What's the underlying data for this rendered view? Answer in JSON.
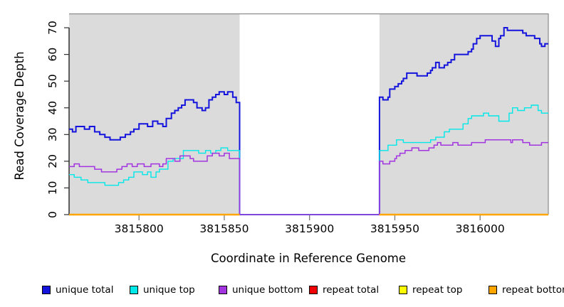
{
  "chart_data": {
    "type": "line",
    "subtype": "step",
    "title": "",
    "xlabel": "Coordinate in Reference Genome",
    "ylabel": "Read Coverage Depth",
    "xlim": [
      3815759,
      3816040
    ],
    "ylim": [
      0,
      75.2
    ],
    "x_ticks": [
      3815800,
      3815850,
      3815900,
      3815950,
      3816000
    ],
    "y_ticks": [
      0,
      10,
      20,
      30,
      40,
      50,
      60,
      70
    ],
    "grid": false,
    "legend_position": "bottom",
    "shade_color": "#DBDBDB",
    "shaded_regions": [
      [
        3815759,
        3815859
      ],
      [
        3815941,
        3816040
      ]
    ],
    "gap_region": [
      3815859,
      3815941
    ],
    "series": [
      {
        "label": "unique total",
        "color": "#1414DC",
        "segments": [
          [
            [
              3815759,
              32
            ],
            [
              3815761,
              31
            ],
            [
              3815763,
              33
            ],
            [
              3815768,
              32
            ],
            [
              3815771,
              33
            ],
            [
              3815774,
              31
            ],
            [
              3815777,
              30
            ],
            [
              3815780,
              29
            ],
            [
              3815783,
              28
            ],
            [
              3815789,
              29
            ],
            [
              3815792,
              30
            ],
            [
              3815795,
              31
            ],
            [
              3815797,
              32
            ],
            [
              3815800,
              34
            ],
            [
              3815805,
              33
            ],
            [
              3815808,
              35
            ],
            [
              3815811,
              34
            ],
            [
              3815814,
              33
            ],
            [
              3815816,
              36
            ],
            [
              3815819,
              38
            ],
            [
              3815821,
              39
            ],
            [
              3815823,
              40
            ],
            [
              3815825,
              41
            ],
            [
              3815827,
              43
            ],
            [
              3815832,
              42
            ],
            [
              3815834,
              40
            ],
            [
              3815837,
              39
            ],
            [
              3815839,
              40
            ],
            [
              3815841,
              43
            ],
            [
              3815843,
              44
            ],
            [
              3815845,
              45
            ],
            [
              3815847,
              46
            ],
            [
              3815850,
              45
            ],
            [
              3815852,
              46
            ],
            [
              3815855,
              44
            ],
            [
              3815857,
              42
            ],
            [
              3815859,
              0
            ],
            [
              3815941,
              44
            ],
            [
              3815943,
              43
            ],
            [
              3815946,
              44
            ],
            [
              3815947,
              47
            ],
            [
              3815950,
              48
            ],
            [
              3815952,
              49
            ],
            [
              3815954,
              50
            ],
            [
              3815955,
              51
            ],
            [
              3815957,
              53
            ],
            [
              3815963,
              52
            ],
            [
              3815969,
              53
            ],
            [
              3815971,
              54
            ],
            [
              3815972,
              55
            ],
            [
              3815974,
              57
            ],
            [
              3815976,
              55
            ],
            [
              3815979,
              56
            ],
            [
              3815981,
              57
            ],
            [
              3815983,
              58
            ],
            [
              3815985,
              60
            ],
            [
              3815993,
              61
            ],
            [
              3815995,
              62
            ],
            [
              3815996,
              64
            ],
            [
              3815998,
              66
            ],
            [
              3816000,
              67
            ],
            [
              3816007,
              65
            ],
            [
              3816009,
              63
            ],
            [
              3816011,
              66
            ],
            [
              3816012,
              67
            ],
            [
              3816014,
              70
            ],
            [
              3816016,
              69
            ],
            [
              3816025,
              68
            ],
            [
              3816027,
              67
            ],
            [
              3816032,
              66
            ],
            [
              3816035,
              64
            ],
            [
              3816036,
              63
            ],
            [
              3816038,
              64
            ],
            [
              3816040,
              64
            ]
          ]
        ]
      },
      {
        "label": "unique top",
        "color": "#00E8E8",
        "segments": [
          [
            [
              3815759,
              15
            ],
            [
              3815762,
              14
            ],
            [
              3815766,
              13
            ],
            [
              3815770,
              12
            ],
            [
              3815780,
              11
            ],
            [
              3815788,
              12
            ],
            [
              3815791,
              13
            ],
            [
              3815794,
              14
            ],
            [
              3815797,
              16
            ],
            [
              3815802,
              15
            ],
            [
              3815805,
              16
            ],
            [
              3815807,
              14
            ],
            [
              3815810,
              16
            ],
            [
              3815812,
              17
            ],
            [
              3815817,
              20
            ],
            [
              3815820,
              21
            ],
            [
              3815826,
              24
            ],
            [
              3815835,
              23
            ],
            [
              3815839,
              24
            ],
            [
              3815842,
              23
            ],
            [
              3815845,
              24
            ],
            [
              3815848,
              25
            ],
            [
              3815852,
              24
            ],
            [
              3815859,
              0
            ],
            [
              3815941,
              24
            ],
            [
              3815946,
              26
            ],
            [
              3815951,
              28
            ],
            [
              3815955,
              27
            ],
            [
              3815971,
              28
            ],
            [
              3815974,
              29
            ],
            [
              3815979,
              31
            ],
            [
              3815982,
              32
            ],
            [
              3815990,
              34
            ],
            [
              3815993,
              36
            ],
            [
              3815995,
              37
            ],
            [
              3816002,
              38
            ],
            [
              3816005,
              37
            ],
            [
              3816011,
              35
            ],
            [
              3816017,
              38
            ],
            [
              3816019,
              40
            ],
            [
              3816022,
              39
            ],
            [
              3816026,
              40
            ],
            [
              3816030,
              41
            ],
            [
              3816034,
              39
            ],
            [
              3816036,
              38
            ],
            [
              3816040,
              38
            ]
          ]
        ]
      },
      {
        "label": "unique bottom",
        "color": "#A335E0",
        "segments": [
          [
            [
              3815759,
              18
            ],
            [
              3815762,
              19
            ],
            [
              3815765,
              18
            ],
            [
              3815774,
              17
            ],
            [
              3815778,
              16
            ],
            [
              3815787,
              17
            ],
            [
              3815790,
              18
            ],
            [
              3815793,
              19
            ],
            [
              3815796,
              18
            ],
            [
              3815799,
              19
            ],
            [
              3815803,
              18
            ],
            [
              3815807,
              19
            ],
            [
              3815812,
              18
            ],
            [
              3815814,
              19
            ],
            [
              3815816,
              21
            ],
            [
              3815821,
              20
            ],
            [
              3815824,
              22
            ],
            [
              3815830,
              21
            ],
            [
              3815832,
              20
            ],
            [
              3815840,
              22
            ],
            [
              3815843,
              23
            ],
            [
              3815847,
              22
            ],
            [
              3815850,
              23
            ],
            [
              3815853,
              21
            ],
            [
              3815859,
              0
            ],
            [
              3815941,
              20
            ],
            [
              3815943,
              19
            ],
            [
              3815947,
              20
            ],
            [
              3815950,
              21
            ],
            [
              3815951,
              22
            ],
            [
              3815953,
              23
            ],
            [
              3815956,
              24
            ],
            [
              3815960,
              25
            ],
            [
              3815964,
              24
            ],
            [
              3815970,
              25
            ],
            [
              3815973,
              26
            ],
            [
              3815975,
              27
            ],
            [
              3815977,
              26
            ],
            [
              3815984,
              27
            ],
            [
              3815987,
              26
            ],
            [
              3815995,
              27
            ],
            [
              3816003,
              28
            ],
            [
              3816018,
              27
            ],
            [
              3816019,
              28
            ],
            [
              3816025,
              27
            ],
            [
              3816029,
              26
            ],
            [
              3816036,
              27
            ],
            [
              3816040,
              27
            ]
          ]
        ]
      },
      {
        "label": "repeat total",
        "color": "#EE0000",
        "segments": [
          [
            [
              3815759,
              0
            ],
            [
              3815859,
              0
            ]
          ],
          [
            [
              3815941,
              0
            ],
            [
              3816040,
              0
            ]
          ]
        ]
      },
      {
        "label": "repeat top",
        "color": "#FFFF00",
        "segments": [
          [
            [
              3815759,
              0
            ],
            [
              3815859,
              0
            ]
          ],
          [
            [
              3815941,
              0
            ],
            [
              3816040,
              0
            ]
          ]
        ]
      },
      {
        "label": "repeat bottom",
        "color": "#FFA500",
        "segments": [
          [
            [
              3815759,
              0
            ],
            [
              3815859,
              0
            ]
          ],
          [
            [
              3815941,
              0
            ],
            [
              3816040,
              0
            ]
          ]
        ]
      }
    ]
  }
}
